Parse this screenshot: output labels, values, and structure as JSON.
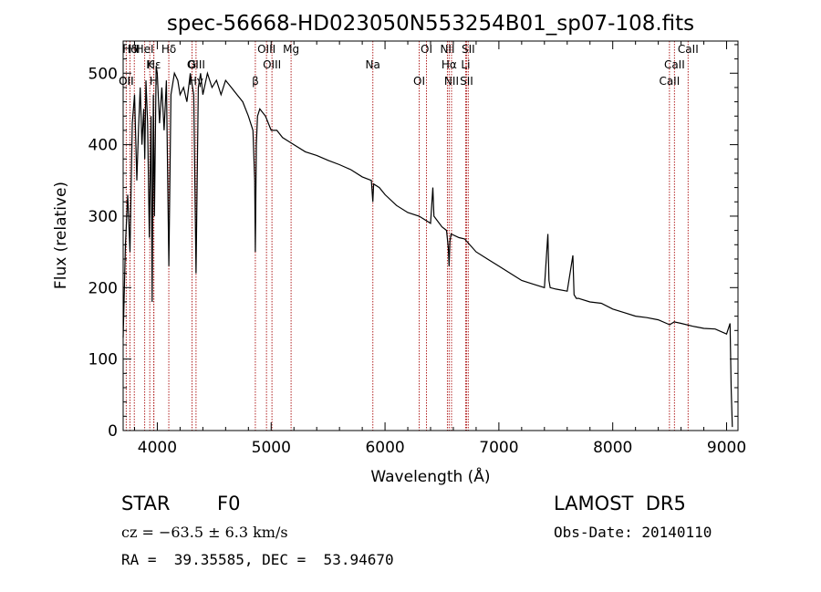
{
  "chart_data": {
    "type": "line",
    "title": "spec-56668-HD023050N553254B01_sp07-108.fits",
    "xlabel": "Wavelength (Å)",
    "ylabel": "Flux (relative)",
    "xlim": [
      3700,
      9100
    ],
    "ylim": [
      0,
      545
    ],
    "xticks": [
      4000,
      5000,
      6000,
      7000,
      8000,
      9000
    ],
    "yticks": [
      0,
      100,
      200,
      300,
      400,
      500
    ],
    "grid": false,
    "series": [
      {
        "x": [
          3700,
          3720,
          3740,
          3760,
          3780,
          3800,
          3820,
          3835,
          3850,
          3865,
          3880,
          3890,
          3900,
          3915,
          3930,
          3945,
          3955,
          3965,
          3975,
          3990,
          4000,
          4020,
          4040,
          4060,
          4080,
          4101,
          4120,
          4150,
          4180,
          4200,
          4230,
          4260,
          4290,
          4320,
          4340,
          4360,
          4380,
          4400,
          4440,
          4480,
          4520,
          4560,
          4600,
          4650,
          4700,
          4750,
          4800,
          4840,
          4855,
          4861,
          4870,
          4880,
          4900,
          4950,
          5000,
          5050,
          5100,
          5150,
          5200,
          5300,
          5400,
          5500,
          5600,
          5700,
          5800,
          5880,
          5893,
          5900,
          5950,
          6000,
          6100,
          6200,
          6300,
          6400,
          6420,
          6430,
          6500,
          6540,
          6556,
          6563,
          6570,
          6580,
          6650,
          6700,
          6800,
          6900,
          7000,
          7100,
          7200,
          7300,
          7400,
          7430,
          7440,
          7450,
          7500,
          7600,
          7650,
          7660,
          7680,
          7700,
          7800,
          7900,
          8000,
          8100,
          8200,
          8300,
          8400,
          8500,
          8540,
          8600,
          8700,
          8800,
          8900,
          9000,
          9030,
          9040,
          9050
        ],
        "y": [
          130,
          260,
          330,
          250,
          430,
          470,
          350,
          420,
          480,
          400,
          450,
          380,
          490,
          430,
          270,
          440,
          180,
          470,
          300,
          510,
          500,
          430,
          480,
          420,
          490,
          230,
          470,
          500,
          490,
          470,
          480,
          460,
          500,
          470,
          220,
          480,
          500,
          470,
          500,
          480,
          490,
          470,
          490,
          480,
          470,
          460,
          440,
          420,
          350,
          250,
          400,
          440,
          450,
          440,
          420,
          420,
          410,
          405,
          400,
          390,
          385,
          378,
          372,
          365,
          355,
          350,
          320,
          345,
          340,
          330,
          315,
          305,
          300,
          290,
          340,
          300,
          285,
          280,
          255,
          230,
          265,
          275,
          270,
          268,
          250,
          240,
          230,
          220,
          210,
          205,
          200,
          275,
          210,
          200,
          198,
          195,
          245,
          190,
          185,
          185,
          180,
          178,
          170,
          165,
          160,
          158,
          155,
          148,
          152,
          150,
          146,
          143,
          142,
          135,
          150,
          60,
          5
        ]
      }
    ],
    "line_markers": [
      {
        "label": "Hδ",
        "x": 3760
      },
      {
        "label": "K",
        "x": 3934
      },
      {
        "label": "H",
        "x": 3968
      },
      {
        "label": "Hδ",
        "x": 4101
      },
      {
        "label": "OIII",
        "x": 4340
      },
      {
        "label": "OII",
        "x": 3727
      },
      {
        "label": "HeI",
        "x": 3889
      },
      {
        "label": "Hε",
        "x": 3970
      },
      {
        "label": "OII",
        "x": 3727
      },
      {
        "label": "HI",
        "x": 3798
      },
      {
        "label": "G",
        "x": 4305
      },
      {
        "label": "Hγ",
        "x": 4340
      },
      {
        "label": "OIII",
        "x": 4959
      },
      {
        "label": "OIII",
        "x": 5007
      },
      {
        "label": "β",
        "x": 4861
      },
      {
        "label": "Mg",
        "x": 5175
      },
      {
        "label": "Na",
        "x": 5893
      },
      {
        "label": "OI",
        "x": 6300
      },
      {
        "label": "OI",
        "x": 6364
      },
      {
        "label": "Hα",
        "x": 6563
      },
      {
        "label": "SII",
        "x": 6716
      },
      {
        "label": "NII",
        "x": 6548
      },
      {
        "label": "Li",
        "x": 6708
      },
      {
        "label": "NII",
        "x": 6584
      },
      {
        "label": "SII",
        "x": 6731
      },
      {
        "label": "CaII",
        "x": 8542
      },
      {
        "label": "CaII",
        "x": 8498
      },
      {
        "label": "CaII",
        "x": 8662
      }
    ]
  },
  "info": {
    "object_class": "STAR",
    "subclass": "F0",
    "survey": "LAMOST  DR5",
    "cz": "cz = −63.5 ± 6.3 km/s",
    "obs_date": "Obs-Date: 20140110",
    "coords": "RA =  39.35585, DEC =  53.94670"
  }
}
